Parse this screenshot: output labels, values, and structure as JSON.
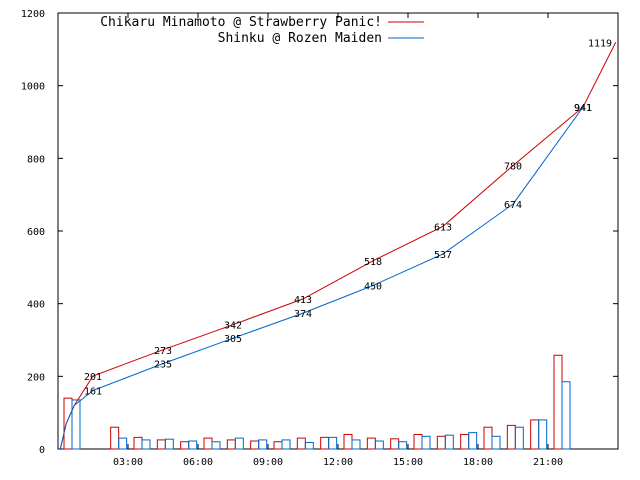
{
  "chart_data": {
    "type": "line",
    "title": "",
    "xlabel": "",
    "ylabel": "",
    "ylim": [
      0,
      1200
    ],
    "yticks": [
      0,
      200,
      400,
      600,
      800,
      1000,
      1200
    ],
    "xticks": [
      "03:00",
      "06:00",
      "09:00",
      "12:00",
      "15:00",
      "18:00",
      "21:00"
    ],
    "grid": false,
    "legend_position": "top-left",
    "series": [
      {
        "name": "Chikaru Minamoto @ Strawberry Panic!",
        "color": "#cc0000",
        "cumulative_labels": [
          {
            "time": "02:00",
            "value": 201
          },
          {
            "time": "05:00",
            "value": 273
          },
          {
            "time": "08:00",
            "value": 342
          },
          {
            "time": "11:00",
            "value": 413
          },
          {
            "time": "14:00",
            "value": 518
          },
          {
            "time": "17:00",
            "value": 613
          },
          {
            "time": "20:00",
            "value": 780
          },
          {
            "time": "23:00",
            "value": 941
          },
          {
            "time": "end",
            "value": 1119
          }
        ],
        "hourly_counts": [
          140,
          0,
          60,
          32,
          25,
          20,
          30,
          25,
          22,
          20,
          30,
          32,
          40,
          30,
          28,
          40,
          35,
          40,
          60,
          65,
          80,
          258
        ]
      },
      {
        "name": "Shinku @ Rozen Maiden",
        "color": "#0066cc",
        "cumulative_labels": [
          {
            "time": "02:00",
            "value": 161
          },
          {
            "time": "05:00",
            "value": 235
          },
          {
            "time": "08:00",
            "value": 305
          },
          {
            "time": "11:00",
            "value": 374
          },
          {
            "time": "14:00",
            "value": 450
          },
          {
            "time": "17:00",
            "value": 537
          },
          {
            "time": "20:00",
            "value": 674
          },
          {
            "time": "23:00",
            "value": 941
          }
        ],
        "hourly_counts": [
          135,
          0,
          30,
          25,
          27,
          22,
          20,
          30,
          25,
          25,
          18,
          32,
          25,
          22,
          20,
          35,
          38,
          45,
          35,
          60,
          80,
          185
        ]
      }
    ]
  }
}
